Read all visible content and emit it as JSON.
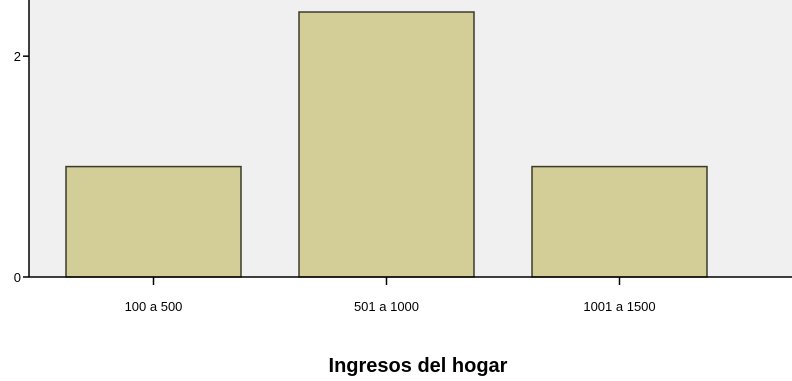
{
  "chart_data": {
    "type": "bar",
    "title": "",
    "xlabel": "Ingresos del hogar",
    "ylabel": "",
    "categories": [
      "100 a 500",
      "501 a 1000",
      "1001 a 1500"
    ],
    "values": [
      1,
      2.4,
      1
    ],
    "y_ticks": [
      0,
      2
    ],
    "ylim": [
      0,
      2.4
    ],
    "grid": false,
    "legend": "none",
    "colors": {
      "bar_fill": "#d3cd98",
      "bar_stroke": "#3a3a2a",
      "plot_background": "#f0f0f0",
      "axis": "#000000"
    }
  }
}
